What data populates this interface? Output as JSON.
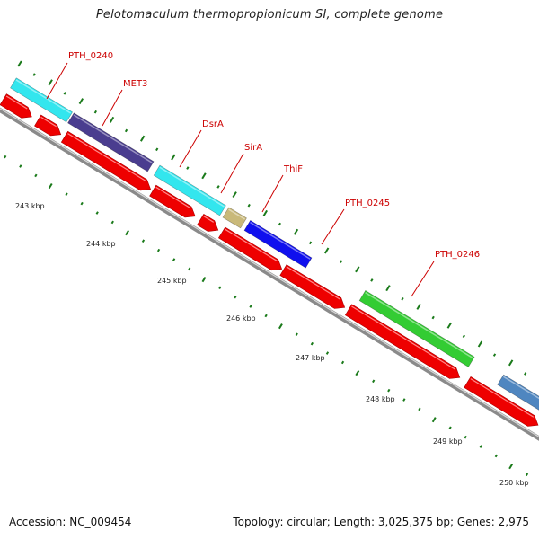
{
  "title": "Pelotomaculum thermopropionicum SI, complete genome",
  "footer": {
    "accession": "Accession: NC_009454",
    "summary": "Topology: circular; Length: 3,025,375 bp; Genes: 2,975"
  },
  "kbp_labels": [
    "243 kbp",
    "244 kbp",
    "245 kbp",
    "246 kbp",
    "247 kbp",
    "248 kbp",
    "249 kbp",
    "250 kbp"
  ],
  "gene_labels": [
    "PTH_0240",
    "MET3",
    "DsrA",
    "SirA",
    "ThiF",
    "PTH_0245",
    "PTH_0246"
  ],
  "colors": {
    "backbone": "#8a8a8a",
    "cds": "#ee0000",
    "tick": "#1a7a1a",
    "label_red": "#cc0000",
    "cyan": "#33e6ee",
    "indigo": "#4a3d8f",
    "khaki": "#c9b97a",
    "blue": "#1010ee",
    "green": "#33cc33",
    "steel": "#4f86c0"
  }
}
